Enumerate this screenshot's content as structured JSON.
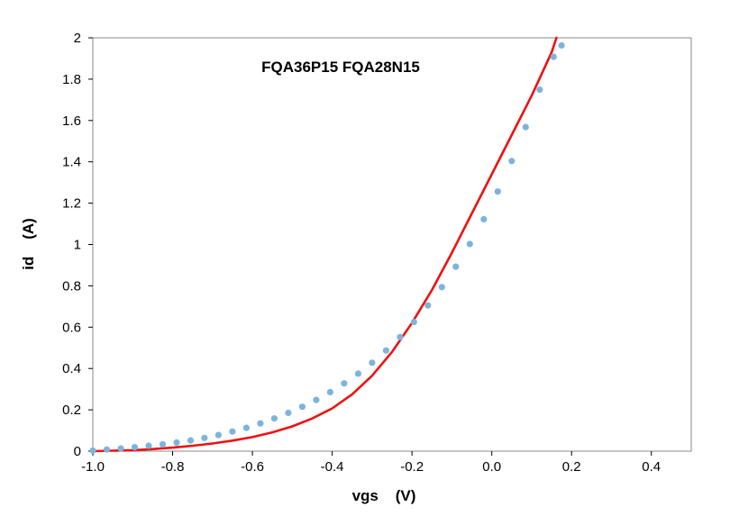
{
  "chart_data": {
    "type": "scatter",
    "title": "FQA36P15 FQA28N15",
    "xlabel": "vgs    (V)",
    "ylabel": "id    (A)",
    "xlim": [
      -1.0,
      0.5
    ],
    "ylim": [
      0,
      2
    ],
    "xticks": [
      -1.0,
      -0.8,
      -0.6,
      -0.4,
      -0.2,
      0.0,
      0.2,
      0.4
    ],
    "xtick_labels": [
      "-1.0",
      "-0.8",
      "-0.6",
      "-0.4",
      "-0.2",
      "0.0",
      "0.2",
      "0.4"
    ],
    "yticks": [
      0,
      0.2,
      0.4,
      0.6,
      0.8,
      1,
      1.2,
      1.4,
      1.6,
      1.8,
      2
    ],
    "ytick_labels": [
      "0",
      "0.2",
      "0.4",
      "0.6",
      "0.8",
      "1",
      "1.2",
      "1.4",
      "1.6",
      "1.8",
      "2"
    ],
    "grid": false,
    "legend": "none",
    "colors": {
      "points": "#7eb4dc",
      "curve": "#ee1111"
    },
    "series": [
      {
        "kind": "points",
        "x": [
          -1.0,
          -0.965,
          -0.93,
          -0.895,
          -0.86,
          -0.825,
          -0.79,
          -0.755,
          -0.72,
          -0.685,
          -0.65,
          -0.615,
          -0.58,
          -0.545,
          -0.51,
          -0.475,
          -0.44,
          -0.405,
          -0.37,
          -0.335,
          -0.3,
          -0.265,
          -0.23,
          -0.195,
          -0.16,
          -0.125,
          -0.09,
          -0.055,
          -0.02,
          0.015,
          0.05,
          0.085,
          0.12,
          0.155,
          0.175
        ],
        "y": [
          0.003,
          0.008,
          0.013,
          0.019,
          0.026,
          0.033,
          0.042,
          0.052,
          0.064,
          0.078,
          0.095,
          0.113,
          0.134,
          0.158,
          0.185,
          0.215,
          0.248,
          0.286,
          0.328,
          0.375,
          0.428,
          0.487,
          0.552,
          0.625,
          0.705,
          0.794,
          0.893,
          1.002,
          1.122,
          1.256,
          1.404,
          1.568,
          1.749,
          1.908,
          1.963
        ]
      },
      {
        "kind": "line",
        "x": [
          -1.0,
          -0.95,
          -0.9,
          -0.85,
          -0.8,
          -0.75,
          -0.7,
          -0.65,
          -0.6,
          -0.55,
          -0.5,
          -0.45,
          -0.4,
          -0.35,
          -0.3,
          -0.25,
          -0.2,
          -0.15,
          -0.1,
          -0.05,
          0.0,
          0.05,
          0.1,
          0.15,
          0.162
        ],
        "y": [
          0.0,
          0.002,
          0.005,
          0.01,
          0.017,
          0.026,
          0.037,
          0.051,
          0.068,
          0.091,
          0.12,
          0.158,
          0.207,
          0.275,
          0.365,
          0.48,
          0.62,
          0.78,
          0.96,
          1.15,
          1.34,
          1.53,
          1.72,
          1.93,
          2.0
        ]
      }
    ]
  }
}
